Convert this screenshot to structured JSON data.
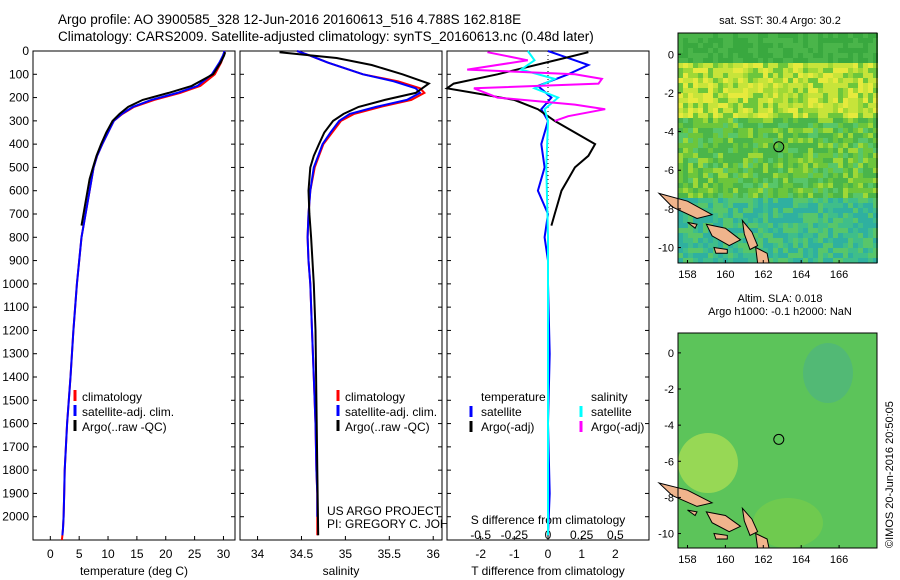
{
  "header": {
    "line1": "Argo profile: AO 3900585_328 12-Jun-2016 20160613_516 4.788S 162.818E",
    "line2": "Climatology: CARS2009. Satellite-adjusted climatology: synTS_20160613.nc (0.48d later)"
  },
  "colors": {
    "climatology": "#ff0000",
    "satellite": "#0000ff",
    "argo": "#000000",
    "salinity_sat": "#00ffff",
    "salinity_argo": "#ff00ff"
  },
  "chart_data": [
    {
      "type": "line",
      "xlabel": "temperature (deg C)",
      "ylabel": "",
      "xlim": [
        -3,
        32
      ],
      "ylim": [
        2100,
        0
      ],
      "xticks": [
        "0",
        "5",
        "10",
        "15",
        "20",
        "25",
        "30"
      ],
      "yticks": [
        "0",
        "100",
        "200",
        "300",
        "400",
        "500",
        "600",
        "700",
        "800",
        "900",
        "1000",
        "1100",
        "1200",
        "1300",
        "1400",
        "1500",
        "1600",
        "1700",
        "1800",
        "1900",
        "2000"
      ],
      "legend": [
        "climatology",
        "satellite-adj. clim.",
        "Argo(..raw -QC)"
      ],
      "series": [
        {
          "name": "climatology",
          "color": "#ff0000",
          "x": [
            30.2,
            30.0,
            29.6,
            28.5,
            26.0,
            22.5,
            18.0,
            14.5,
            12.5,
            11.0,
            10.0,
            9.0,
            8.1,
            7.5,
            6.8,
            5.4,
            4.6,
            4.0,
            3.5,
            3.2,
            2.9,
            2.7,
            2.5,
            2.4,
            2.3,
            2.2,
            2.1,
            2.0
          ],
          "y": [
            0,
            20,
            50,
            100,
            150,
            180,
            210,
            240,
            270,
            300,
            350,
            400,
            450,
            500,
            600,
            800,
            1000,
            1200,
            1400,
            1500,
            1600,
            1700,
            1800,
            1900,
            2000,
            2050,
            2080,
            2100
          ]
        },
        {
          "name": "satellite-adj. clim.",
          "color": "#0000ff",
          "x": [
            30.2,
            29.9,
            29.3,
            28.0,
            25.5,
            22.0,
            17.5,
            14.3,
            12.4,
            11.0,
            10.0,
            9.0,
            8.1,
            7.5,
            6.8,
            5.4,
            4.6,
            4.0,
            3.5,
            3.2,
            2.9,
            2.7,
            2.5,
            2.4,
            2.3,
            2.2,
            2.1
          ],
          "y": [
            0,
            20,
            50,
            100,
            150,
            180,
            210,
            240,
            270,
            300,
            350,
            400,
            450,
            500,
            600,
            800,
            1000,
            1200,
            1400,
            1500,
            1600,
            1700,
            1800,
            1900,
            2000,
            2050,
            2080
          ]
        },
        {
          "name": "Argo(..raw -QC)",
          "color": "#000000",
          "x": [
            30.3,
            30.1,
            29.5,
            28.2,
            24.5,
            20.5,
            16.0,
            13.5,
            12.0,
            10.8,
            9.7,
            8.8,
            8.0,
            7.4,
            6.8,
            6.1,
            5.4
          ],
          "y": [
            5,
            20,
            50,
            100,
            150,
            180,
            210,
            240,
            270,
            300,
            350,
            400,
            450,
            500,
            550,
            650,
            750
          ]
        }
      ]
    },
    {
      "type": "line",
      "xlabel": "salinity",
      "xlim": [
        33.8,
        36.1
      ],
      "ylim": [
        2100,
        0
      ],
      "xticks": [
        "34",
        "34.5",
        "35",
        "35.5",
        "36"
      ],
      "legend": [
        "climatology",
        "satellite-adj. clim.",
        "Argo(..raw -QC)"
      ],
      "annotation": [
        "US ARGO PROJECT",
        "PI: GREGORY C. JOHNSON"
      ],
      "series": [
        {
          "name": "climatology",
          "color": "#ff0000",
          "x": [
            34.45,
            34.6,
            34.8,
            35.2,
            35.6,
            35.85,
            35.9,
            35.75,
            35.4,
            35.1,
            34.95,
            34.85,
            34.75,
            34.7,
            34.65,
            34.6,
            34.58,
            34.57,
            34.58,
            34.6,
            34.62,
            34.64,
            34.66,
            34.67,
            34.68,
            34.68,
            34.68
          ],
          "y": [
            0,
            20,
            50,
            100,
            130,
            160,
            180,
            210,
            240,
            270,
            300,
            350,
            400,
            450,
            500,
            600,
            700,
            800,
            900,
            1000,
            1200,
            1400,
            1600,
            1800,
            1900,
            2000,
            2080
          ]
        },
        {
          "name": "satellite-adj. clim.",
          "color": "#0000ff",
          "x": [
            34.45,
            34.6,
            34.8,
            35.2,
            35.55,
            35.8,
            35.85,
            35.7,
            35.35,
            35.05,
            34.93,
            34.83,
            34.74,
            34.69,
            34.64,
            34.6,
            34.58,
            34.57,
            34.58,
            34.6,
            34.62,
            34.64,
            34.66,
            34.67,
            34.68,
            34.68
          ],
          "y": [
            0,
            20,
            50,
            100,
            130,
            160,
            180,
            210,
            240,
            270,
            300,
            350,
            400,
            450,
            500,
            600,
            700,
            800,
            900,
            1000,
            1200,
            1400,
            1600,
            1800,
            1900,
            2000
          ]
        },
        {
          "name": "Argo(..raw -QC)",
          "color": "#000000",
          "x": [
            34.25,
            34.9,
            35.3,
            35.65,
            35.95,
            35.8,
            35.45,
            35.15,
            34.98,
            34.86,
            34.76,
            34.7,
            34.64,
            34.6,
            34.58,
            34.59,
            34.61,
            34.64,
            34.66,
            34.67,
            34.68,
            34.69
          ],
          "y": [
            5,
            30,
            60,
            100,
            140,
            180,
            210,
            240,
            270,
            300,
            350,
            400,
            450,
            500,
            600,
            700,
            800,
            1000,
            1200,
            1500,
            1800,
            2080
          ]
        }
      ]
    },
    {
      "type": "line",
      "xlabel": "T difference from climatology",
      "x2label": "S difference from climatology",
      "xlim": [
        -3,
        3
      ],
      "ylim": [
        2100,
        0
      ],
      "xticks": [
        "-2",
        "-1",
        "0",
        "1",
        "2"
      ],
      "x2ticks": [
        "-0.5",
        "-0.25",
        "0",
        "0.25",
        "0.5"
      ],
      "legend": [
        "temperature",
        "satellite",
        "Argo(-adj)",
        "salinity",
        "satellite",
        "Argo(-adj)"
      ],
      "series": [
        {
          "name": "satellite",
          "color": "#0000ff",
          "x": [
            0.0,
            0.4,
            1.2,
            0.6,
            -0.3,
            0.1,
            -0.2,
            0.0,
            -0.2,
            -0.1,
            -0.3,
            0.0,
            -0.1,
            0.0,
            0.0,
            0.05,
            0.0,
            0.05,
            0.0
          ],
          "y": [
            0,
            20,
            60,
            100,
            150,
            200,
            250,
            300,
            400,
            500,
            600,
            700,
            800,
            900,
            1000,
            1300,
            1600,
            1900,
            2080
          ]
        },
        {
          "name": "Argo(-adj)",
          "color": "#000000",
          "x": [
            1.2,
            0.5,
            -1.5,
            -2.8,
            -3.0,
            -2.2,
            -1.0,
            -0.3,
            0.2,
            0.8,
            1.4,
            1.2,
            0.8,
            0.6,
            0.4,
            0.3,
            0.2,
            0.1
          ],
          "y": [
            5,
            30,
            100,
            140,
            160,
            180,
            210,
            250,
            300,
            350,
            400,
            450,
            500,
            550,
            600,
            650,
            700,
            750
          ]
        },
        {
          "name": "satellite",
          "color": "#00ffff",
          "x": [
            -0.6,
            -0.4,
            -0.8,
            0.2,
            -0.4,
            0.3,
            -0.1,
            0.0,
            -0.05,
            0.0,
            0.0,
            0.0,
            0.0
          ],
          "y": [
            0,
            40,
            80,
            120,
            160,
            200,
            250,
            300,
            500,
            800,
            1200,
            1600,
            2080
          ]
        },
        {
          "name": "Argo(-adj)",
          "color": "#ff00ff",
          "x": [
            -1.8,
            -0.6,
            -2.4,
            0.8,
            1.6,
            1.5,
            -2.2,
            -1.5,
            0.8,
            1.7,
            0.6,
            0.2
          ],
          "y": [
            5,
            40,
            80,
            100,
            120,
            140,
            160,
            200,
            230,
            250,
            280,
            300
          ]
        }
      ]
    }
  ],
  "maps": [
    {
      "title": "sat. SST: 30.4 Argo: 30.2",
      "xticks": [
        "158",
        "160",
        "162",
        "164",
        "166"
      ],
      "yticks": [
        "0",
        "-2",
        "-4",
        "-6",
        "-8",
        "-10"
      ],
      "xlim": [
        157.5,
        168
      ],
      "ylim": [
        -10.8,
        1.1
      ],
      "marker": {
        "lon": 162.818,
        "lat": -4.788
      }
    },
    {
      "title": "Altim. SLA: 0.018",
      "subtitle": "Argo h1000: -0.1 h2000: NaN",
      "xticks": [
        "158",
        "160",
        "162",
        "164",
        "166"
      ],
      "yticks": [
        "0",
        "-2",
        "-4",
        "-6",
        "-8",
        "-10"
      ],
      "xlim": [
        157.5,
        168
      ],
      "ylim": [
        -10.8,
        1.1
      ],
      "marker": {
        "lon": 162.818,
        "lat": -4.788
      }
    }
  ],
  "credit": "©IMOS 20-Jun-2016 20:50:05"
}
